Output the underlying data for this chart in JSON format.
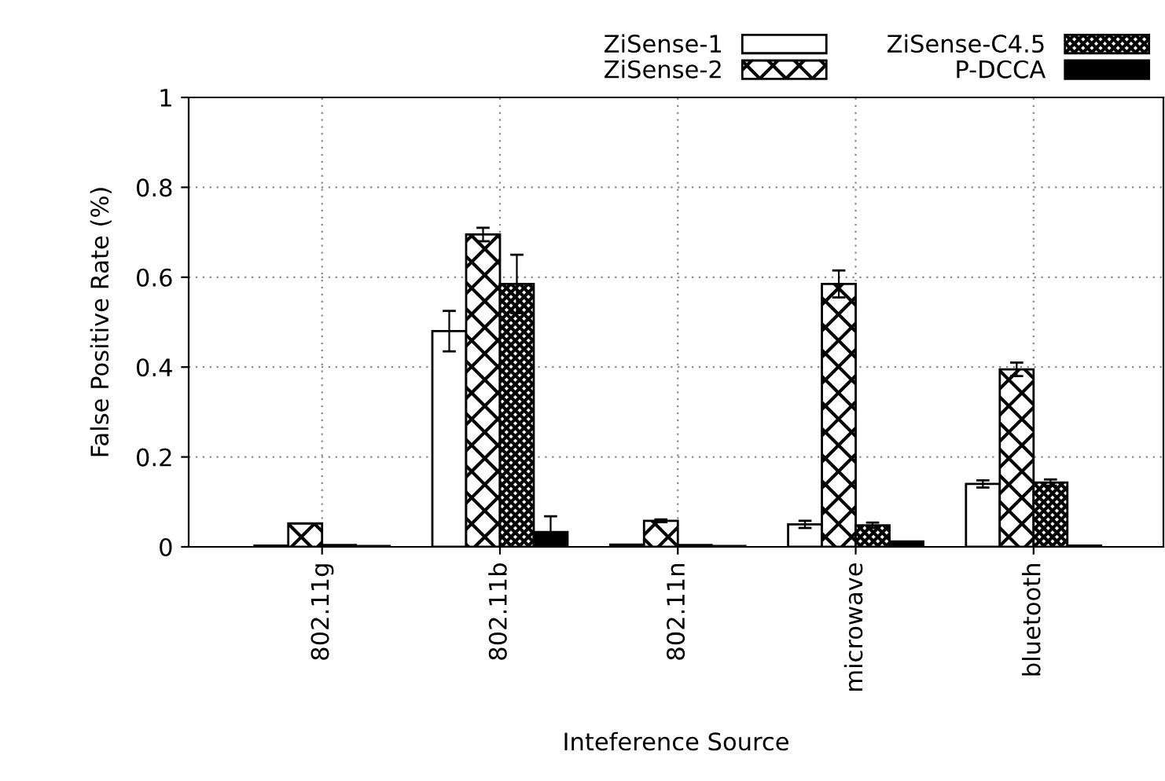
{
  "chart_data": {
    "type": "bar",
    "xlabel": "Inteference Source",
    "ylabel": "False Positive Rate (%)",
    "categories": [
      "802.11g",
      "802.11b",
      "802.11n",
      "microwave",
      "bluetooth"
    ],
    "series": [
      {
        "name": "ZiSense-1",
        "color": "#ffffff",
        "values": [
          0.003,
          0.48,
          0.005,
          0.05,
          0.14
        ],
        "errors": [
          null,
          0.045,
          null,
          0.008,
          0.008
        ]
      },
      {
        "name": "ZiSense-2",
        "color": "#000000",
        "values": [
          0.052,
          0.695,
          0.058,
          0.585,
          0.395
        ],
        "errors": [
          null,
          0.015,
          0.003,
          0.03,
          0.015
        ]
      },
      {
        "name": "ZiSense-C4.5",
        "color": "#000000",
        "values": [
          0.004,
          0.585,
          0.004,
          0.048,
          0.143
        ],
        "errors": [
          null,
          0.065,
          null,
          0.006,
          0.007
        ]
      },
      {
        "name": "P-DCCA",
        "color": "#000000",
        "values": [
          0.002,
          0.033,
          0.002,
          0.012,
          0.003
        ],
        "errors": [
          null,
          0.035,
          null,
          null,
          null
        ]
      }
    ],
    "ylim": [
      0,
      1
    ],
    "yticks": [
      0,
      0.2,
      0.4,
      0.6,
      0.8,
      1
    ],
    "grid": true,
    "legend": "top right"
  }
}
